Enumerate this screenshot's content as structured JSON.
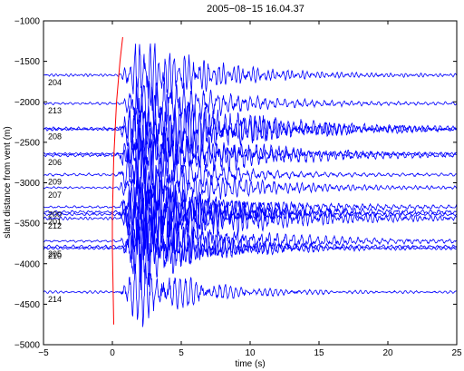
{
  "chart_data": {
    "type": "line",
    "title": "2005−08−15 16.04.37",
    "xlabel": "time (s)",
    "ylabel": "slant distance from vent (m)",
    "xlim": [
      -5,
      25
    ],
    "ylim": [
      -5000,
      -1000
    ],
    "y_reversed": true,
    "x_ticks": [
      -5,
      0,
      5,
      10,
      15,
      20,
      25
    ],
    "y_ticks": [
      -5000,
      -4500,
      -4000,
      -3500,
      -3000,
      -2500,
      -2000,
      -1500,
      -1000
    ],
    "x_tick_labels": [
      "−5",
      "0",
      "5",
      "10",
      "15",
      "20",
      "25"
    ],
    "y_tick_labels": [
      "−5000",
      "−4500",
      "−4000",
      "−3500",
      "−3000",
      "−2500",
      "−2000",
      "−1500",
      "−1000"
    ],
    "grid": false,
    "trace_color": "#0000ff",
    "moveout_color": "#ff0000",
    "traces": [
      {
        "station": "204",
        "distance": -1670
      },
      {
        "station": "213",
        "distance": -2020
      },
      {
        "station": "",
        "distance": -2330
      },
      {
        "station": "208",
        "distance": -2340
      },
      {
        "station": "",
        "distance": -2640
      },
      {
        "station": "206",
        "distance": -2660
      },
      {
        "station": "209",
        "distance": -2900
      },
      {
        "station": "207",
        "distance": -3060
      },
      {
        "station": "200",
        "distance": -3300
      },
      {
        "station": "",
        "distance": -3360
      },
      {
        "station": "201",
        "distance": -3390
      },
      {
        "station": "212",
        "distance": -3440
      },
      {
        "station": "",
        "distance": -3720
      },
      {
        "station": "205",
        "distance": -3790
      },
      {
        "station": "210",
        "distance": -3810
      },
      {
        "station": "214",
        "distance": -4350
      }
    ],
    "moveout_curve": {
      "x": [
        0.1,
        0.0,
        0.0,
        0.1,
        0.3,
        0.55,
        0.75
      ],
      "y": [
        -4750,
        -3800,
        -3400,
        -2700,
        -2000,
        -1500,
        -1200
      ]
    }
  }
}
